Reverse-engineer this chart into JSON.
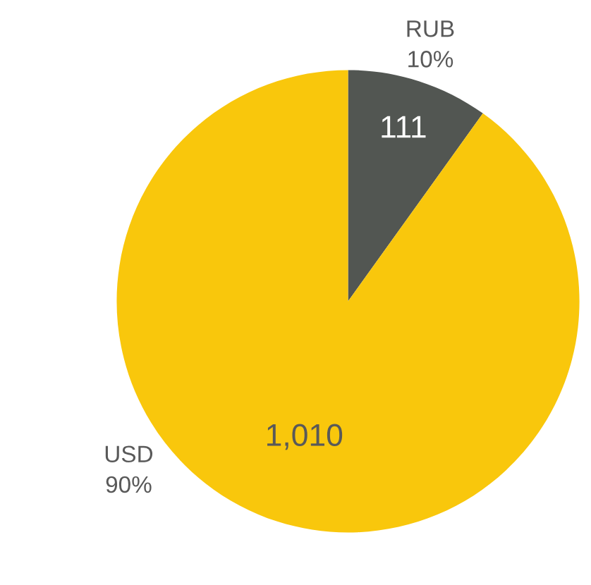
{
  "chart_data": {
    "type": "pie",
    "categories": [
      "RUB",
      "USD"
    ],
    "values": [
      111,
      1010
    ],
    "colors": [
      "#525652",
      "#f9c70c"
    ],
    "value_labels": [
      "111",
      "1,010"
    ],
    "annotations": [
      {
        "text": "10%",
        "x": "RUB"
      },
      {
        "text": "90%",
        "x": "USD"
      }
    ],
    "legend": false
  }
}
